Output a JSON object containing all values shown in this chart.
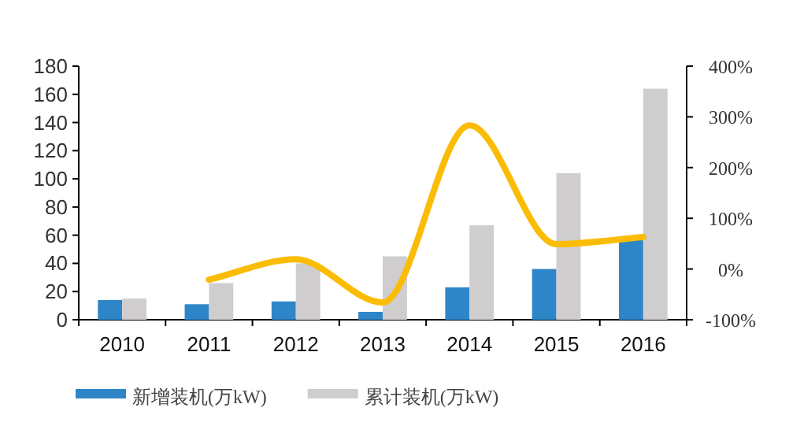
{
  "chart_data": {
    "type": "bar",
    "categories": [
      "2010",
      "2011",
      "2012",
      "2013",
      "2014",
      "2015",
      "2016"
    ],
    "series": [
      {
        "name": "新增装机(万kW)",
        "color": "#2e86c8",
        "values": [
          14,
          11,
          13,
          5.6,
          23,
          36,
          59
        ]
      },
      {
        "name": "累计装机(万kW)",
        "color": "#cfcdce",
        "values": [
          15,
          26,
          40,
          45,
          67,
          104,
          164
        ]
      },
      {
        "type": "line",
        "axis": "y2",
        "color": "#fbbc05",
        "values": [
          null,
          -21,
          19,
          -66,
          283,
          49,
          63
        ]
      }
    ],
    "ylim": [
      0,
      180
    ],
    "yticks": [
      0,
      20,
      40,
      60,
      80,
      100,
      120,
      140,
      160,
      180
    ],
    "y2lim": [
      -100,
      400
    ],
    "y2ticks": [
      {
        "value": -100,
        "label": "-100%"
      },
      {
        "value": 0,
        "label": "0%"
      },
      {
        "value": 100,
        "label": "100%"
      },
      {
        "value": 200,
        "label": "200%"
      },
      {
        "value": 300,
        "label": "300%"
      },
      {
        "value": 400,
        "label": "400%"
      }
    ],
    "legend": "bottom"
  }
}
